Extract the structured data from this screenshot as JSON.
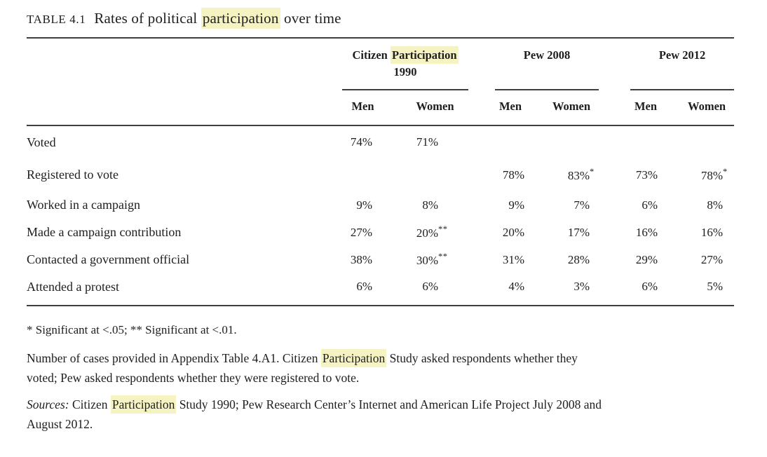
{
  "colors": {
    "highlight": "#f6f3c3",
    "rule": "#3e3e3e",
    "text": "#1e1e1e",
    "background": "#ffffff"
  },
  "title": {
    "number": "TABLE 4.1",
    "pre": "Rates of political ",
    "highlight": "participation",
    "post": " over time"
  },
  "table": {
    "groups": [
      {
        "pre": "Citizen ",
        "highlight": "Participation",
        "line2": "1990",
        "sub": [
          "Men",
          "Women"
        ]
      },
      {
        "label": "Pew 2008",
        "sub": [
          "Men",
          "Women"
        ]
      },
      {
        "label": "Pew 2012",
        "sub": [
          "Men",
          "Women"
        ]
      }
    ],
    "rows": [
      {
        "label": "Voted",
        "values": [
          {
            "v": "74%"
          },
          {
            "v": "71%"
          },
          {
            "v": ""
          },
          {
            "v": ""
          },
          {
            "v": ""
          },
          {
            "v": ""
          }
        ]
      },
      {
        "label": "Registered to vote",
        "values": [
          {
            "v": ""
          },
          {
            "v": ""
          },
          {
            "v": "78%"
          },
          {
            "v": "83%",
            "sup": "*"
          },
          {
            "v": "73%"
          },
          {
            "v": "78%",
            "sup": "*"
          }
        ]
      },
      {
        "label": "Worked in a campaign",
        "values": [
          {
            "v": "9%"
          },
          {
            "v": "8%"
          },
          {
            "v": "9%"
          },
          {
            "v": "7%"
          },
          {
            "v": "6%"
          },
          {
            "v": "8%"
          }
        ]
      },
      {
        "label": "Made a campaign contribution",
        "values": [
          {
            "v": "27%"
          },
          {
            "v": "20%",
            "sup": "**"
          },
          {
            "v": "20%"
          },
          {
            "v": "17%"
          },
          {
            "v": "16%"
          },
          {
            "v": "16%"
          }
        ]
      },
      {
        "label": "Contacted a government official",
        "values": [
          {
            "v": "38%"
          },
          {
            "v": "30%",
            "sup": "**"
          },
          {
            "v": "31%"
          },
          {
            "v": "28%"
          },
          {
            "v": "29%"
          },
          {
            "v": "27%"
          }
        ]
      },
      {
        "label": "Attended a protest",
        "values": [
          {
            "v": "6%"
          },
          {
            "v": "6%"
          },
          {
            "v": "4%"
          },
          {
            "v": "3%"
          },
          {
            "v": "6%"
          },
          {
            "v": "5%"
          }
        ]
      }
    ]
  },
  "footnotes": {
    "significance": "* Significant at <.05; ** Significant at <.01.",
    "cases": {
      "pre": "Number of cases provided in Appendix Table 4.A1. Citizen ",
      "highlight": "Participation",
      "post": " Study asked respondents whether they",
      "line2": "voted; Pew asked respondents whether they were registered to vote."
    },
    "sources": {
      "label": "Sources:",
      "pre": " Citizen ",
      "highlight": "Participation",
      "post": " Study 1990; Pew Research Center’s Internet and American Life Project July 2008 and",
      "line2": "August 2012."
    }
  },
  "chart_data": {
    "type": "table",
    "title": "TABLE 4.1 Rates of political participation over time",
    "column_groups": [
      "Citizen Participation 1990",
      "Pew 2008",
      "Pew 2012"
    ],
    "columns": [
      "Citizen Participation 1990 Men",
      "Citizen Participation 1990 Women",
      "Pew 2008 Men",
      "Pew 2008 Women",
      "Pew 2012 Men",
      "Pew 2012 Women"
    ],
    "rows": [
      {
        "label": "Voted",
        "values": [
          "74%",
          "71%",
          null,
          null,
          null,
          null
        ]
      },
      {
        "label": "Registered to vote",
        "values": [
          null,
          null,
          "78%",
          "83%*",
          "73%",
          "78%*"
        ]
      },
      {
        "label": "Worked in a campaign",
        "values": [
          "9%",
          "8%",
          "9%",
          "7%",
          "6%",
          "8%"
        ]
      },
      {
        "label": "Made a campaign contribution",
        "values": [
          "27%",
          "20%**",
          "20%",
          "17%",
          "16%",
          "16%"
        ]
      },
      {
        "label": "Contacted a government official",
        "values": [
          "38%",
          "30%**",
          "31%",
          "28%",
          "29%",
          "27%"
        ]
      },
      {
        "label": "Attended a protest",
        "values": [
          "6%",
          "6%",
          "4%",
          "3%",
          "6%",
          "5%"
        ]
      }
    ]
  }
}
